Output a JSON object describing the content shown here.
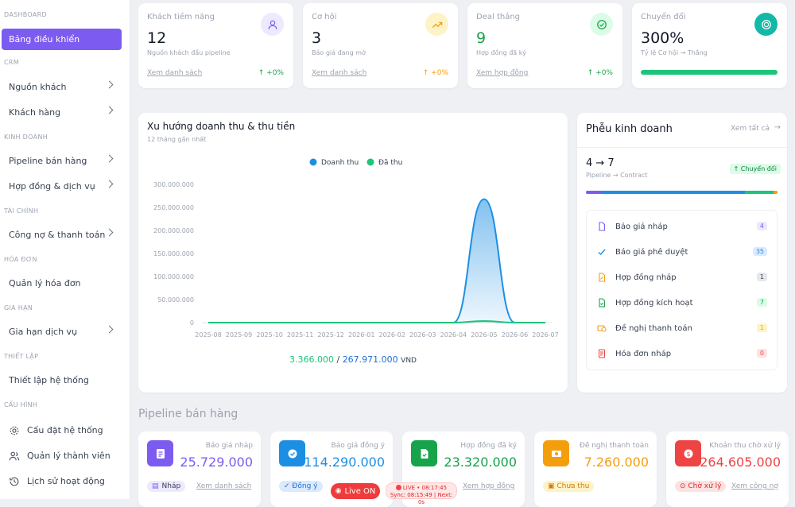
{
  "sidebar": {
    "sections": [
      "DASHBOARD",
      "CRM",
      "KINH DOANH",
      "TÀI CHÍNH",
      "HÓA ĐƠN",
      "GIA HẠN",
      "THIẾT LẬP",
      "CẤU HÌNH"
    ],
    "items": [
      {
        "label": "Bảng điều khiển"
      },
      {
        "label": "Nguồn khách"
      },
      {
        "label": "Khách hàng"
      },
      {
        "label": "Pipeline bán hàng"
      },
      {
        "label": "Hợp đồng & dịch vụ"
      },
      {
        "label": "Công nợ & thanh toán"
      },
      {
        "label": "Quản lý hóa đơn"
      },
      {
        "label": "Gia hạn dịch vụ"
      },
      {
        "label": "Thiết lập hệ thống"
      },
      {
        "label": "Cấu đặt hệ thống",
        "icon": "gear-icon"
      },
      {
        "label": "Quản lý thành viên",
        "icon": "users-icon"
      },
      {
        "label": "Lịch sử hoạt động",
        "icon": "history-icon"
      }
    ]
  },
  "kpis": [
    {
      "label": "Khách tiềm năng",
      "value": "12",
      "sub": "Nguồn khách đầu pipeline",
      "link": "Xem danh sách",
      "change": "↑ +0%",
      "icon": "user-icon",
      "color": "#7c5cf0"
    },
    {
      "label": "Cơ hội",
      "value": "3",
      "sub": "Báo giá đang mở",
      "link": "Xem danh sách",
      "change": "↑ +0%",
      "icon": "trending-up-icon",
      "color": "#f59e0b"
    },
    {
      "label": "Deal thắng",
      "value": "9",
      "sub": "Hợp đồng đã ký",
      "link": "Xem hợp đồng",
      "change": "↑ +0%",
      "icon": "check-circle-icon",
      "color": "#16a34a"
    },
    {
      "label": "Chuyển đổi",
      "value": "300%",
      "sub": "Tỷ lệ Cơ hội → Thắng",
      "icon": "target-icon",
      "color": "#14b8a6",
      "progress": 1
    }
  ],
  "chart": {
    "title": "Xu hướng doanh thu & thu tiền",
    "subtitle": "12 tháng gần nhất",
    "summary_paid": "3.366.000",
    "summary_sep": "/",
    "summary_revenue": "267.971.000",
    "summary_unit": "VND"
  },
  "chart_data": {
    "type": "area",
    "x": [
      "2025-08",
      "2025-09",
      "2025-10",
      "2025-11",
      "2025-12",
      "2026-01",
      "2026-02",
      "2026-03",
      "2026-04",
      "2026-05",
      "2026-06",
      "2026-07"
    ],
    "y_tick_labels": [
      "0",
      "50.000.000",
      "100.000.000",
      "150.000.000",
      "200.000.000",
      "250.000.000",
      "300.000.000"
    ],
    "ylim": [
      0,
      300000000
    ],
    "legend_position": "top",
    "series": [
      {
        "name": "Doanh thu",
        "color": "#1d8fe3",
        "values": [
          0,
          0,
          0,
          0,
          0,
          0,
          0,
          0,
          0,
          267971000,
          0,
          0
        ]
      },
      {
        "name": "Đã thu",
        "color": "#1ec47a",
        "values": [
          0,
          0,
          0,
          0,
          0,
          0,
          0,
          0,
          0,
          3366000,
          0,
          0
        ]
      }
    ]
  },
  "funnel": {
    "title": "Phễu kinh doanh",
    "view_all": "Xem tất cả",
    "conversion": "4 → 7",
    "conversion_sub": "Pipeline → Contract",
    "badge": "↑ Chuyển đổi",
    "items": [
      {
        "label": "Báo giá nháp",
        "count": "4",
        "icon": "file-icon",
        "color": "#7c5cf0",
        "bg": "#ede9fe"
      },
      {
        "label": "Báo giá phê duyệt",
        "count": "35",
        "icon": "check-icon",
        "color": "#1d8fe3",
        "bg": "#dbeafe"
      },
      {
        "label": "Hợp đồng nháp",
        "count": "1",
        "icon": "contract-draft-icon",
        "color": "#f59e0b",
        "bg": "#e5e7eb"
      },
      {
        "label": "Hợp đồng kích hoạt",
        "count": "7",
        "icon": "contract-active-icon",
        "color": "#16a34a",
        "bg": "#dcfce7"
      },
      {
        "label": "Đề nghị thanh toán",
        "count": "1",
        "icon": "payment-request-icon",
        "color": "#f59e0b",
        "bg": "#fef3c7"
      },
      {
        "label": "Hóa đơn nháp",
        "count": "0",
        "icon": "invoice-icon",
        "color": "#ef4444",
        "bg": "#fee2e2"
      }
    ]
  },
  "pipeline": {
    "title": "Pipeline bán hàng",
    "cards": [
      {
        "label": "Báo giá nháp",
        "value": "25.729.000",
        "tag": "Nháp",
        "link": "Xem danh sách",
        "color": "#7c5cf0",
        "tagbg": "#ede9fe",
        "icon": "document-icon"
      },
      {
        "label": "Báo giá đồng ý",
        "value": "114.290.000",
        "tag": "✓ Đồng ý",
        "link": "",
        "color": "#1d8fe3",
        "tagbg": "#dbeafe",
        "icon": "check-badge-icon"
      },
      {
        "label": "Hợp đồng đã ký",
        "value": "23.320.000",
        "tag": "",
        "link": "Xem hợp đồng",
        "color": "#16a34a",
        "tagbg": "#dcfce7",
        "icon": "signed-contract-icon"
      },
      {
        "label": "Đề nghị thanh toán",
        "value": "7.260.000",
        "tag": "▣ Chưa thu",
        "link": "",
        "color": "#f59e0b",
        "tagbg": "#fef3c7",
        "icon": "payment-icon"
      },
      {
        "label": "Khoản thu chờ xử lý",
        "value": "264.605.000",
        "tag": "⊙ Chờ xử lý",
        "link": "Xem công nợ",
        "color": "#ef4444",
        "tagbg": "#fee2e2",
        "icon": "money-icon"
      }
    ]
  },
  "status": {
    "live_label": "Live ON",
    "sync_line1": "LIVE • 08:17:45",
    "sync_line2": "Sync: 08:15:49 | Next: 0s"
  }
}
